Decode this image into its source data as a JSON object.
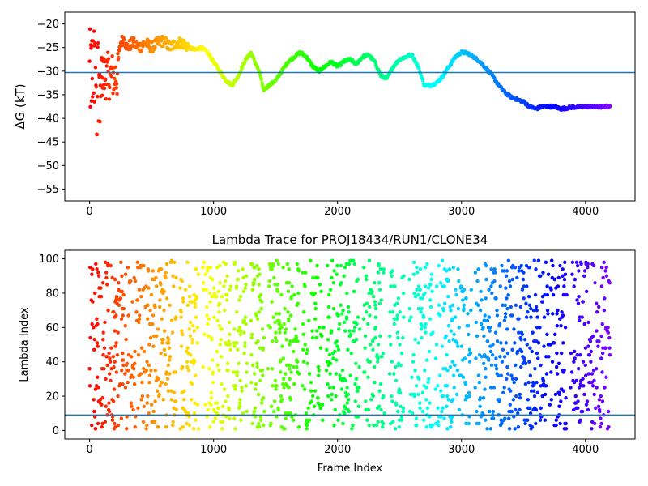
{
  "chart_data": [
    {
      "type": "scatter",
      "title": "",
      "xlabel": "",
      "ylabel": "ΔG (kT)",
      "xlim": [
        -200,
        4400
      ],
      "ylim": [
        -57.5,
        -17.5
      ],
      "xticks": [
        0,
        1000,
        2000,
        3000,
        4000
      ],
      "yticks": [
        -55,
        -50,
        -45,
        -40,
        -35,
        -30,
        -25,
        -20
      ],
      "xtick_labels": [
        "0",
        "1000",
        "2000",
        "3000",
        "4000"
      ],
      "ytick_labels": [
        "−55",
        "−50",
        "−45",
        "−40",
        "−35",
        "−30",
        "−25",
        "−20"
      ],
      "hline": -30.3,
      "hline_color": "#1f77b4",
      "colormap": "rainbow (red at frame 0 → violet at frame 4200)",
      "series": [
        {
          "x": [
            0,
            5,
            10,
            15,
            20,
            25,
            30,
            35,
            40,
            45,
            50,
            55,
            60,
            65,
            70,
            75,
            80,
            85,
            90,
            100,
            110,
            120,
            130,
            140,
            150,
            160,
            170,
            180,
            190,
            200,
            220,
            250,
            280,
            300,
            350,
            400,
            450,
            500,
            550,
            600,
            650,
            700,
            750,
            800,
            850,
            900,
            950,
            1000,
            1050,
            1100,
            1150,
            1200,
            1250,
            1300,
            1350,
            1380,
            1400,
            1450,
            1500,
            1550,
            1600,
            1650,
            1700,
            1750,
            1800,
            1850,
            1900,
            1950,
            2000,
            2050,
            2100,
            2150,
            2200,
            2250,
            2300,
            2350,
            2400,
            2450,
            2500,
            2550,
            2600,
            2650,
            2700,
            2750,
            2800,
            2850,
            2900,
            2950,
            3000,
            3050,
            3100,
            3150,
            3200,
            3250,
            3300,
            3350,
            3400,
            3450,
            3500,
            3550,
            3600,
            3650,
            3700,
            3750,
            3800,
            3850,
            3900,
            3950,
            4000,
            4050,
            4100,
            4150,
            4200
          ],
          "y": [
            -20,
            -32,
            -18.5,
            -35,
            -24,
            -22,
            -39,
            -28,
            -44,
            -30,
            -37,
            -33,
            -27,
            -42,
            -36,
            -29,
            -31,
            -34,
            -28,
            -30,
            -32,
            -27,
            -33,
            -30,
            -35,
            -29,
            -32,
            -31,
            -33,
            -34,
            -30,
            -24,
            -23,
            -25,
            -24,
            -25,
            -24,
            -25,
            -24,
            -23.5,
            -25,
            -24,
            -24,
            -25,
            -25.5,
            -25,
            -26,
            -28,
            -30,
            -32,
            -33,
            -31,
            -28,
            -26,
            -29,
            -31,
            -34,
            -33,
            -32,
            -30,
            -28,
            -27,
            -26,
            -27,
            -29,
            -30,
            -29,
            -28,
            -29,
            -28,
            -27.5,
            -28.5,
            -27,
            -26.5,
            -28,
            -31,
            -31.5,
            -29,
            -27.5,
            -27,
            -26.5,
            -29,
            -33,
            -33,
            -32.5,
            -31,
            -29,
            -27,
            -26,
            -26.2,
            -27,
            -28,
            -29.5,
            -31,
            -33,
            -34.5,
            -35.5,
            -36,
            -36.5,
            -37.5,
            -38,
            -37.5,
            -37.5,
            -37.5,
            -38,
            -37.8,
            -37.6,
            -37.6,
            -37.5,
            -37.5,
            -37.6,
            -37.5,
            -37.5
          ]
        }
      ]
    },
    {
      "type": "scatter",
      "title": "Lambda Trace for PROJ18434/RUN1/CLONE34",
      "xlabel": "Frame Index",
      "ylabel": "Lambda Index",
      "xlim": [
        -200,
        4400
      ],
      "ylim": [
        -5,
        105
      ],
      "xticks": [
        0,
        1000,
        2000,
        3000,
        4000
      ],
      "yticks": [
        0,
        20,
        40,
        60,
        80,
        100
      ],
      "xtick_labels": [
        "0",
        "1000",
        "2000",
        "3000",
        "4000"
      ],
      "ytick_labels": [
        "0",
        "20",
        "40",
        "60",
        "80",
        "100"
      ],
      "hline": 9,
      "hline_color": "#1f77b4",
      "colormap": "rainbow (red at frame 0 → violet at frame 4200)",
      "frame_range": [
        0,
        4200
      ],
      "lambda_range": [
        1,
        99
      ]
    }
  ]
}
